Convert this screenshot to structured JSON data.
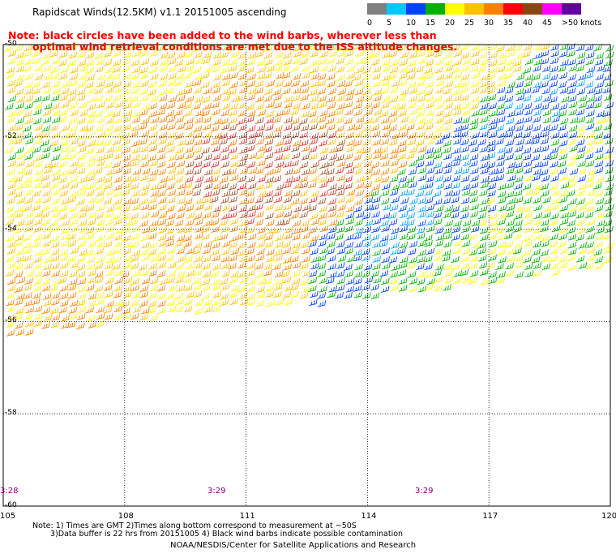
{
  "title": "Rapidscat Winds(12.5KM) v1.1 20151005 ascending",
  "note_line1": "Note: black circles have been added to the wind barbs, wherever less than",
  "note_line2": "optimal wind retrieval conditions are met due to the ISS altitude changes.",
  "colorbar": {
    "labels": [
      "0",
      "5",
      "10",
      "15",
      "20",
      "25",
      "30",
      "35",
      "40",
      "45",
      ">50 knots"
    ],
    "colors": [
      "#808080",
      "#00c8ff",
      "#0040ff",
      "#00b000",
      "#ffff00",
      "#ffc000",
      "#ff8000",
      "#ff0000",
      "#8b4513",
      "#ff00ff",
      "#6000a0"
    ]
  },
  "map": {
    "lat_labels": [
      "-50",
      "-52",
      "-54",
      "-56",
      "-58",
      "-60"
    ],
    "lon_labels": [
      "105",
      "108",
      "111",
      "114",
      "117",
      "120"
    ],
    "time_labels": [
      "3:28",
      "3:29",
      "3:29"
    ]
  },
  "footnote_line1": "Note: 1) Times are GMT 2)Times along bottom correspond to measurement at ~50S",
  "footnote_line2": "3)Data buffer is 22 hrs from 20151005 4) Black wind barbs indicate possible contamination",
  "credit": "NOAA/NESDIS/Center for Satellite Applications and Research"
}
